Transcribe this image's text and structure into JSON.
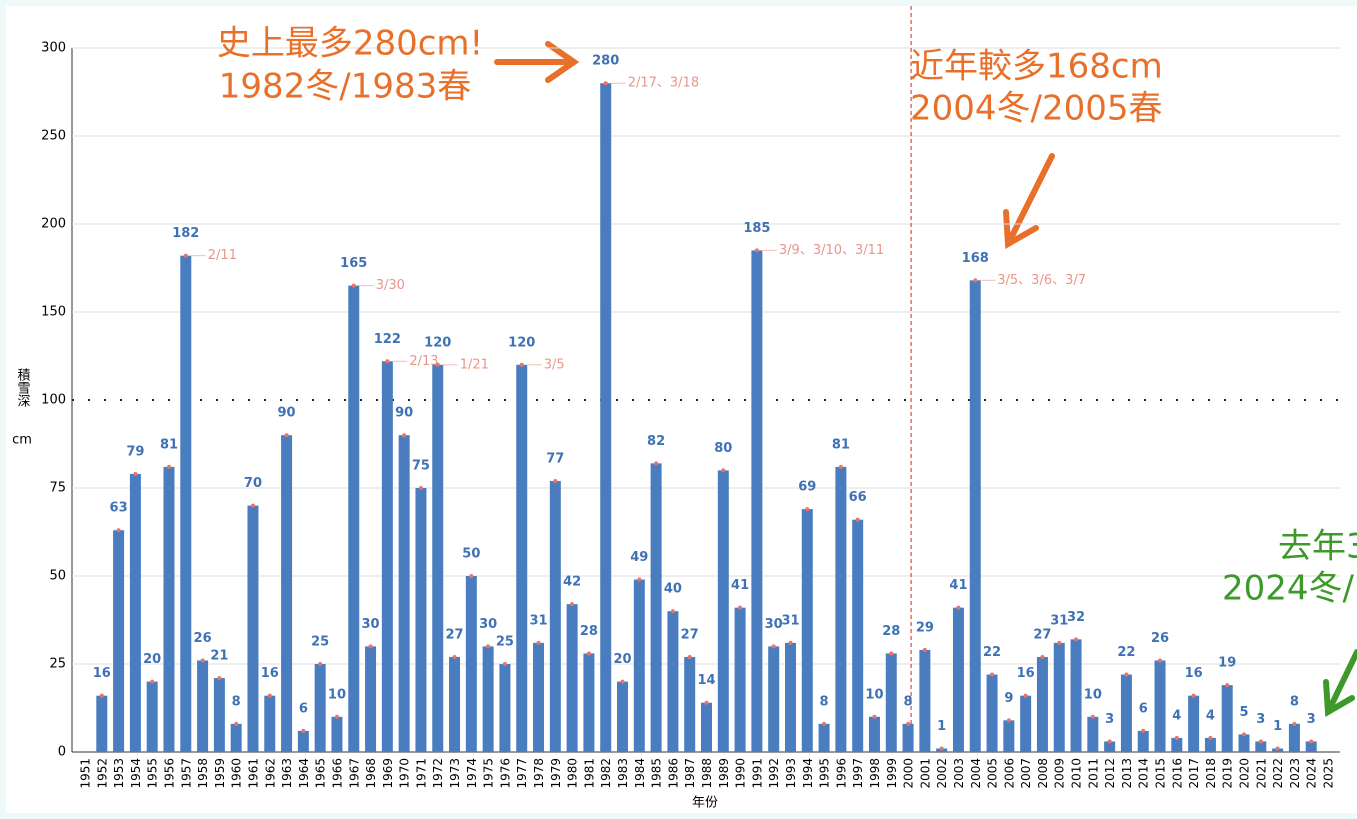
{
  "chart_data": {
    "type": "bar",
    "categories": [
      "1951",
      "1952",
      "1953",
      "1954",
      "1955",
      "1956",
      "1957",
      "1958",
      "1959",
      "1960",
      "1961",
      "1962",
      "1963",
      "1964",
      "1965",
      "1966",
      "1967",
      "1968",
      "1969",
      "1970",
      "1971",
      "1972",
      "1973",
      "1974",
      "1975",
      "1976",
      "1977",
      "1978",
      "1979",
      "1980",
      "1981",
      "1982",
      "1983",
      "1984",
      "1985",
      "1986",
      "1987",
      "1988",
      "1989",
      "1990",
      "1991",
      "1992",
      "1993",
      "1994",
      "1995",
      "1996",
      "1997",
      "1998",
      "1999",
      "2000",
      "2001",
      "2002",
      "2003",
      "2004",
      "2005",
      "2006",
      "2007",
      "2008",
      "2009",
      "2010",
      "2011",
      "2012",
      "2013",
      "2014",
      "2015",
      "2016",
      "2017",
      "2018",
      "2019",
      "2020",
      "2021",
      "2022",
      "2023",
      "2024",
      "2025"
    ],
    "values": [
      null,
      16,
      63,
      79,
      20,
      81,
      182,
      26,
      21,
      8,
      70,
      16,
      90,
      6,
      25,
      10,
      165,
      30,
      122,
      90,
      75,
      120,
      27,
      50,
      30,
      25,
      120,
      31,
      77,
      42,
      28,
      280,
      20,
      49,
      82,
      40,
      27,
      14,
      80,
      41,
      185,
      30,
      31,
      69,
      8,
      81,
      66,
      10,
      28,
      8,
      29,
      1,
      41,
      168,
      22,
      9,
      16,
      27,
      31,
      32,
      10,
      3,
      22,
      6,
      26,
      4,
      16,
      4,
      19,
      5,
      3,
      1,
      8,
      3,
      null
    ],
    "date_labels": [
      null,
      null,
      null,
      null,
      null,
      null,
      "2/11",
      null,
      null,
      null,
      null,
      null,
      null,
      null,
      null,
      null,
      "3/30",
      null,
      "2/13",
      null,
      null,
      "1/21",
      null,
      null,
      null,
      null,
      "3/5",
      null,
      null,
      null,
      null,
      "2/17、3/18",
      null,
      null,
      null,
      null,
      null,
      null,
      null,
      null,
      "3/9、3/10、3/11",
      null,
      null,
      null,
      null,
      null,
      null,
      null,
      null,
      null,
      null,
      null,
      null,
      "3/5、3/6、3/7",
      null,
      null,
      null,
      null,
      null,
      null,
      null,
      null,
      null,
      null,
      null,
      null,
      null,
      null,
      null,
      null,
      null,
      null,
      null,
      null,
      null
    ],
    "color": "#4a7dc0",
    "value_label_color": "#3f72b5",
    "date_label_color": "#e8968a",
    "ylim": [
      0,
      300
    ],
    "yticks": [
      0,
      25,
      50,
      75,
      100,
      150,
      200,
      250,
      300
    ],
    "grid": true,
    "ylabel": "積雪深",
    "ylabel_unit": "cm",
    "xlabel": "年份",
    "reference_line_x": "2000",
    "annotations": [
      {
        "lines": [
          "史上最多280cm!",
          "1982冬/1983春"
        ],
        "color": "#e8702a"
      },
      {
        "lines": [
          "近年較多168cm",
          "2004冬/2005春"
        ],
        "color": "#e8702a"
      },
      {
        "lines": [
          "去年3",
          "2024冬/"
        ],
        "color": "#3d9a2a"
      }
    ]
  }
}
